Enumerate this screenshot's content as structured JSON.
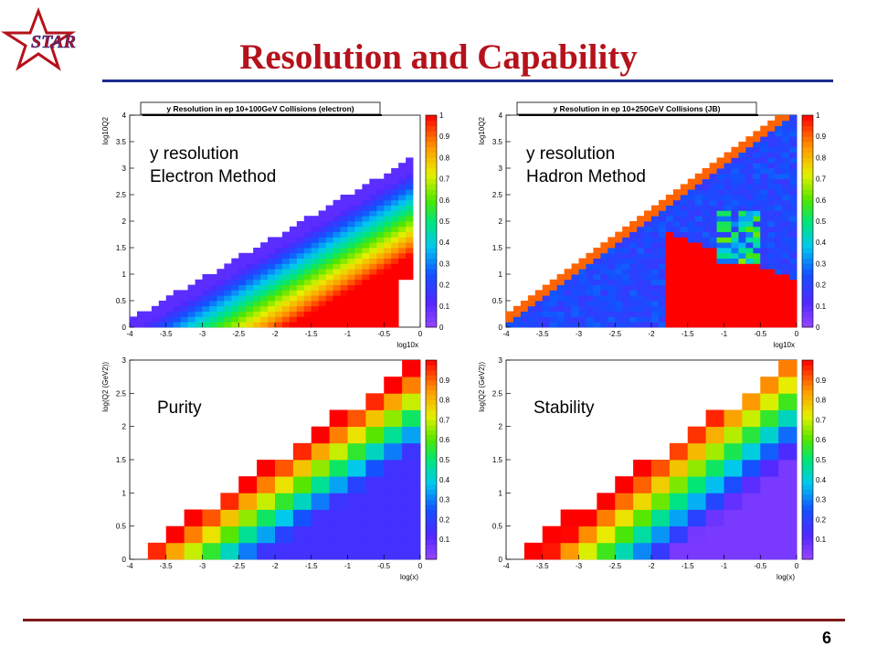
{
  "header": {
    "title": "Resolution and Capability",
    "logo_text": "STAR"
  },
  "footer": {
    "page_number": "6"
  },
  "colors": {
    "title": "#b5121b",
    "title_rule": "#1b2a8f",
    "footer_rule": "#7d1a1a"
  },
  "chart_data": [
    {
      "type": "heatmap",
      "title": "y Resolution in ep 10+100GeV Collisions (electron)",
      "annotation": [
        "y resolution",
        "Electron Method"
      ],
      "xlabel": "log10x",
      "ylabel": "log10Q2",
      "xlim": [
        -4,
        0
      ],
      "ylim": [
        0,
        4
      ],
      "zlim": [
        0,
        1
      ],
      "x_ticks": [
        "-4",
        "-3.5",
        "-3",
        "-2.5",
        "-2",
        "-1.5",
        "-1",
        "-0.5",
        "0"
      ],
      "y_ticks": [
        "0",
        "0.5",
        "1",
        "1.5",
        "2",
        "2.5",
        "3",
        "3.5",
        "4"
      ],
      "z_ticks": [
        "0",
        "0.1",
        "0.2",
        "0.3",
        "0.4",
        "0.5",
        "0.6",
        "0.7",
        "0.8",
        "0.9",
        "1"
      ],
      "colorscale": "rainbow (violet=0, red=1)",
      "grid": false
    },
    {
      "type": "heatmap",
      "title": "y Resolution in ep 10+250GeV Collisions (JB)",
      "annotation": [
        "y resolution",
        "Hadron Method"
      ],
      "xlabel": "log10x",
      "ylabel": "log10Q2",
      "xlim": [
        -4,
        0
      ],
      "ylim": [
        0,
        4
      ],
      "zlim": [
        0,
        1
      ],
      "x_ticks": [
        "-4",
        "-3.5",
        "-3",
        "-2.5",
        "-2",
        "-1.5",
        "-1",
        "-0.5",
        "0"
      ],
      "y_ticks": [
        "0",
        "0.5",
        "1",
        "1.5",
        "2",
        "2.5",
        "3",
        "3.5",
        "4"
      ],
      "z_ticks": [
        "0",
        "0.1",
        "0.2",
        "0.3",
        "0.4",
        "0.5",
        "0.6",
        "0.7",
        "0.8",
        "0.9",
        "1"
      ],
      "colorscale": "rainbow (violet=0, red=1)",
      "grid": false
    },
    {
      "type": "heatmap",
      "title": "",
      "annotation": [
        "Purity"
      ],
      "xlabel": "log(x)",
      "ylabel": "log(Q2 (GeV2))",
      "xlim": [
        -4,
        0
      ],
      "ylim": [
        0,
        3
      ],
      "zlim": [
        0,
        1
      ],
      "x_ticks": [
        "-4",
        "-3.5",
        "-3",
        "-2.5",
        "-2",
        "-1.5",
        "-1",
        "-0.5",
        "0"
      ],
      "y_ticks": [
        "0",
        "0.5",
        "1",
        "1.5",
        "2",
        "2.5",
        "3"
      ],
      "z_ticks": [
        "0.1",
        "0.2",
        "0.3",
        "0.4",
        "0.5",
        "0.6",
        "0.7",
        "0.8",
        "0.9"
      ],
      "colorscale": "rainbow (violet=0, red=1)",
      "grid": false
    },
    {
      "type": "heatmap",
      "title": "",
      "annotation": [
        "Stability"
      ],
      "xlabel": "log(x)",
      "ylabel": "log(Q2 (GeV2))",
      "xlim": [
        -4,
        0
      ],
      "ylim": [
        0,
        3
      ],
      "zlim": [
        0,
        1
      ],
      "x_ticks": [
        "-4",
        "-3.5",
        "-3",
        "-2.5",
        "-2",
        "-1.5",
        "-1",
        "-0.5",
        "0"
      ],
      "y_ticks": [
        "0",
        "0.5",
        "1",
        "1.5",
        "2",
        "2.5",
        "3"
      ],
      "z_ticks": [
        "0.1",
        "0.2",
        "0.3",
        "0.4",
        "0.5",
        "0.6",
        "0.7",
        "0.8",
        "0.9"
      ],
      "colorscale": "rainbow (violet=0, red=1)",
      "grid": false
    }
  ]
}
